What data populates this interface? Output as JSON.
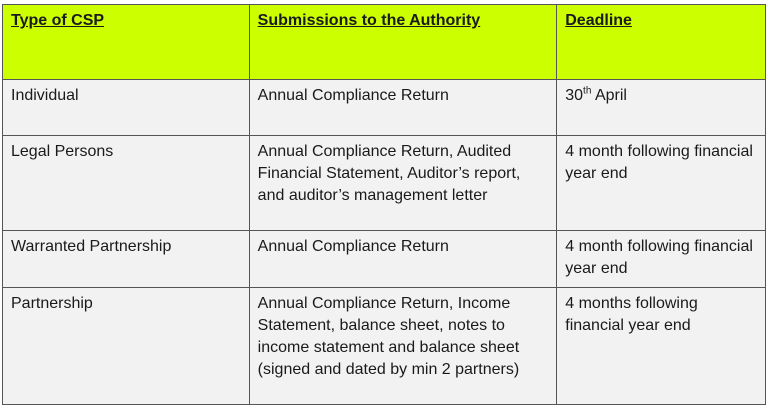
{
  "table": {
    "headers": [
      "Type of CSP",
      "Submissions to the Authority",
      "Deadline"
    ],
    "rows": [
      {
        "type": "Individual",
        "submissions": "Annual Compliance Return",
        "deadline_day": "30",
        "deadline_sup": "th",
        "deadline_rest": " April"
      },
      {
        "type": "Legal Persons",
        "submissions": "Annual Compliance Return, Audited Financial Statement, Auditor’s report, and auditor’s management letter",
        "deadline": "4 month following financial year end"
      },
      {
        "type": "Warranted Partnership",
        "submissions": "Annual Compliance Return",
        "deadline": "4 month following financial year end"
      },
      {
        "type": "Partnership",
        "submissions": "Annual Compliance Return, Income Statement, balance sheet, notes to income statement and balance sheet (signed and dated by min 2 partners)",
        "deadline": "4 months following financial year end"
      }
    ]
  },
  "colors": {
    "header_bg": "#ccff00",
    "row_bg": "#f2f2f2"
  }
}
